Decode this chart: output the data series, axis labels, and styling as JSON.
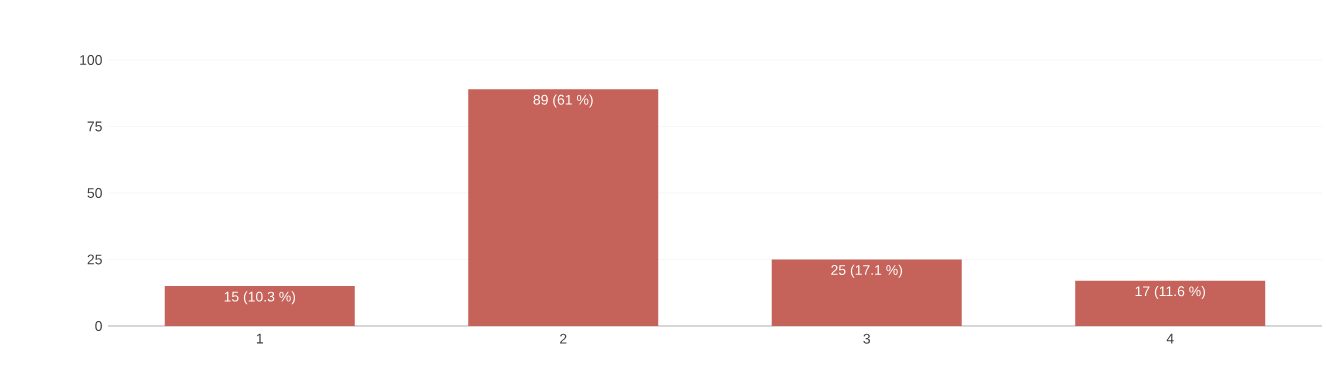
{
  "chart_data": {
    "type": "bar",
    "categories": [
      "1",
      "2",
      "3",
      "4"
    ],
    "values": [
      15,
      89,
      25,
      17
    ],
    "value_labels": [
      "15 (10.3 %)",
      "89 (61 %)",
      "25 (17.1 %)",
      "17 (11.6 %)"
    ],
    "color": "#c5625a",
    "ylim": [
      0,
      100
    ],
    "yticks": [
      0,
      25,
      50,
      75,
      100
    ],
    "grid": "y"
  }
}
